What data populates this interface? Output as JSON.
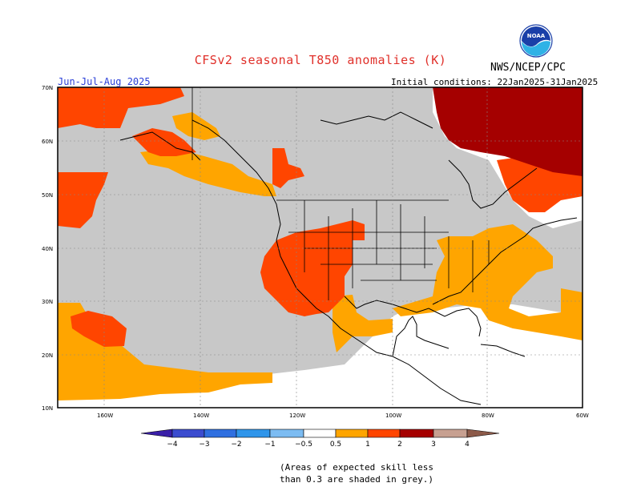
{
  "header": {
    "title": "CFSv2 seasonal T850 anomalies (K)",
    "organization": "NWS/NCEP/CPC",
    "season": "Jun-Jul-Aug 2025",
    "initial_conditions": "Initial conditions: 22Jan2025-31Jan2025"
  },
  "logo": {
    "icon": "noaa-logo-icon",
    "text": "NOAA"
  },
  "map": {
    "lat_labels": [
      "70N",
      "60N",
      "50N",
      "40N",
      "30N",
      "20N",
      "10N"
    ],
    "lon_labels": [
      "160W",
      "140W",
      "120W",
      "100W",
      "80W",
      "60W"
    ],
    "lat_values": [
      70,
      60,
      50,
      40,
      30,
      20,
      10
    ],
    "lon_values": [
      -160,
      -140,
      -120,
      -100,
      -80,
      -60
    ],
    "lon_range": [
      -170,
      -60
    ],
    "lat_range": [
      10,
      70
    ],
    "gridlines": true,
    "colors": {
      "grey_low_skill": "#c8c8c8",
      "ocean_land_white": "#ffffff",
      "anom_0_5_to_1": "#ffa500",
      "anom_1_to_2": "#ff4500",
      "anom_2_to_3": "#a50000"
    }
  },
  "colorbar": {
    "labels": [
      "−4",
      "−3",
      "−2",
      "−1",
      "−0.5",
      "0.5",
      "1",
      "2",
      "3",
      "4"
    ],
    "colors": [
      "#3a1fa8",
      "#3b5bd6",
      "#2f8fe6",
      "#6fb6f0",
      "#ffffff",
      "#ffa500",
      "#ff4500",
      "#a50000",
      "#c7a091",
      "#8c5a49"
    ]
  },
  "footer": {
    "skill_note": "(Areas of expected skill less\nthan 0.3 are shaded in grey.)"
  }
}
